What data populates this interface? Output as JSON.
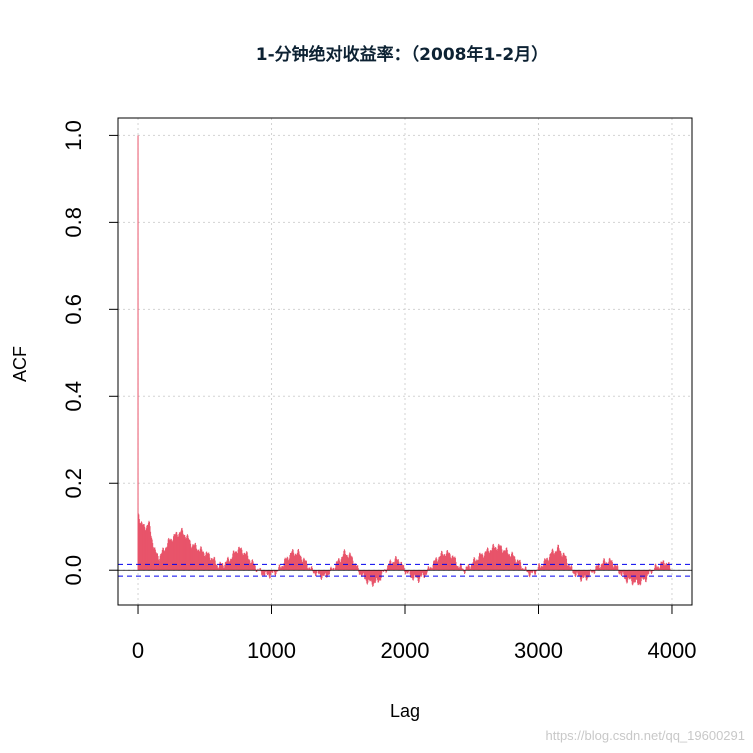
{
  "chart_data": {
    "type": "bar",
    "title": "1-分钟绝对收益率：（2008年1-2月）",
    "xlabel": "Lag",
    "ylabel": "ACF",
    "xlim": [
      -150,
      4150
    ],
    "ylim": [
      -0.08,
      1.04
    ],
    "x_ticks": [
      0,
      1000,
      2000,
      3000,
      4000
    ],
    "x_tick_labels": [
      "0",
      "1000",
      "2000",
      "3000",
      "4000"
    ],
    "y_ticks": [
      0.0,
      0.2,
      0.4,
      0.6,
      0.8,
      1.0
    ],
    "y_tick_labels": [
      "0.0",
      "0.2",
      "0.4",
      "0.6",
      "0.8",
      "1.0"
    ],
    "grid": true,
    "confidence_band": [
      -0.0135,
      0.0135
    ],
    "lag0_value": 1.0,
    "series": [
      {
        "lag": [
          5,
          20,
          40,
          60,
          80,
          100,
          130,
          160,
          200,
          240,
          280,
          320,
          360,
          400,
          450,
          500,
          550,
          600,
          650,
          700,
          750,
          800,
          850,
          900,
          950,
          1000,
          1050,
          1100,
          1150,
          1200,
          1250,
          1300,
          1350,
          1400,
          1450,
          1500,
          1550,
          1600,
          1650,
          1700,
          1750,
          1800,
          1850,
          1900,
          1950,
          2000,
          2050,
          2100,
          2150,
          2200,
          2250,
          2300,
          2350,
          2400,
          2450,
          2500,
          2550,
          2600,
          2650,
          2700,
          2750,
          2800,
          2850,
          2900,
          2950,
          3000,
          3050,
          3100,
          3150,
          3200,
          3250,
          3300,
          3350,
          3400,
          3450,
          3500,
          3550,
          3600,
          3650,
          3700,
          3750,
          3800,
          3850,
          3900,
          3950,
          4000
        ],
        "acf": [
          0.13,
          0.11,
          0.1,
          0.1,
          0.11,
          0.08,
          0.04,
          0.03,
          0.05,
          0.07,
          0.08,
          0.09,
          0.08,
          0.06,
          0.05,
          0.04,
          0.03,
          0.01,
          0.015,
          0.03,
          0.05,
          0.04,
          0.02,
          0.0,
          -0.01,
          -0.01,
          0.0,
          0.02,
          0.04,
          0.04,
          0.02,
          0.0,
          -0.01,
          -0.015,
          0.0,
          0.02,
          0.04,
          0.03,
          0.0,
          -0.02,
          -0.03,
          -0.025,
          0.0,
          0.02,
          0.025,
          0.0,
          -0.015,
          -0.02,
          -0.01,
          0.01,
          0.03,
          0.04,
          0.035,
          0.01,
          0.0,
          0.015,
          0.03,
          0.04,
          0.05,
          0.055,
          0.045,
          0.035,
          0.02,
          0.0,
          -0.01,
          0.005,
          0.02,
          0.04,
          0.05,
          0.03,
          0.0,
          -0.015,
          -0.02,
          -0.005,
          0.01,
          0.02,
          0.02,
          0.0,
          -0.02,
          -0.025,
          -0.03,
          -0.02,
          0.0,
          0.01,
          0.02,
          0.0
        ]
      }
    ],
    "colors": {
      "bars": "#e8546a",
      "confidence": "#0000ee",
      "grid": "#d3d3d3",
      "axis": "#000000"
    }
  },
  "watermark": "https://blog.csdn.net/qq_19600291"
}
